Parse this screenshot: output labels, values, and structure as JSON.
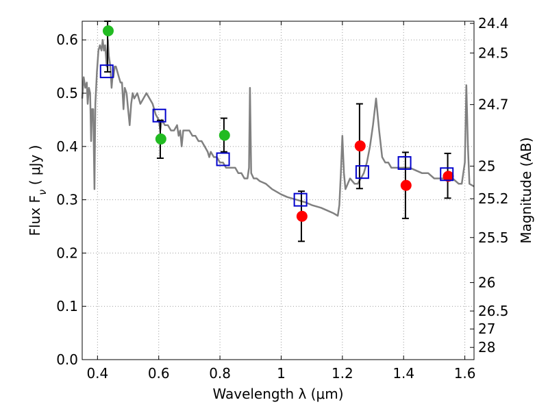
{
  "chart_data": {
    "type": "scatter",
    "xlabel": "Wavelength  λ (μm)",
    "ylabel": "Flux  F_ν  ( μJy )",
    "ylabel_right": "Magnitude (AB)",
    "xlim": [
      0.35,
      1.63
    ],
    "ylim": [
      0.0,
      0.635
    ],
    "grid": true,
    "x_ticks": [
      {
        "value": 0.4,
        "label": "0.4"
      },
      {
        "value": 0.6,
        "label": "0.6"
      },
      {
        "value": 0.8,
        "label": "0.8"
      },
      {
        "value": 1.0,
        "label": "1"
      },
      {
        "value": 1.2,
        "label": "1.2"
      },
      {
        "value": 1.4,
        "label": "1.4"
      },
      {
        "value": 1.6,
        "label": "1.6"
      }
    ],
    "y_ticks": [
      {
        "value": 0.0,
        "label": "0.0"
      },
      {
        "value": 0.1,
        "label": "0.1"
      },
      {
        "value": 0.2,
        "label": "0.2"
      },
      {
        "value": 0.3,
        "label": "0.3"
      },
      {
        "value": 0.4,
        "label": "0.4"
      },
      {
        "value": 0.5,
        "label": "0.5"
      },
      {
        "value": 0.6,
        "label": "0.6"
      }
    ],
    "mag_ticks": [
      {
        "value": 24.4,
        "label": "24.4"
      },
      {
        "value": 24.5,
        "label": "24.5"
      },
      {
        "value": 24.7,
        "label": "24.7"
      },
      {
        "value": 25.0,
        "label": "25"
      },
      {
        "value": 25.2,
        "label": "25.2"
      },
      {
        "value": 25.5,
        "label": "25.5"
      },
      {
        "value": 26.0,
        "label": "26"
      },
      {
        "value": 26.5,
        "label": "26.5"
      },
      {
        "value": 27.0,
        "label": "27"
      },
      {
        "value": 28.0,
        "label": "28"
      }
    ],
    "series": [
      {
        "kind": "line",
        "color": "#808080",
        "points": [
          [
            0.35,
            0.49
          ],
          [
            0.355,
            0.53
          ],
          [
            0.36,
            0.51
          ],
          [
            0.365,
            0.52
          ],
          [
            0.368,
            0.48
          ],
          [
            0.372,
            0.51
          ],
          [
            0.376,
            0.5
          ],
          [
            0.379,
            0.41
          ],
          [
            0.382,
            0.47
          ],
          [
            0.386,
            0.47
          ],
          [
            0.39,
            0.32
          ],
          [
            0.393,
            0.48
          ],
          [
            0.398,
            0.54
          ],
          [
            0.403,
            0.58
          ],
          [
            0.408,
            0.59
          ],
          [
            0.413,
            0.58
          ],
          [
            0.417,
            0.6
          ],
          [
            0.421,
            0.58
          ],
          [
            0.425,
            0.59
          ],
          [
            0.43,
            0.55
          ],
          [
            0.434,
            0.6
          ],
          [
            0.437,
            0.57
          ],
          [
            0.442,
            0.55
          ],
          [
            0.446,
            0.51
          ],
          [
            0.449,
            0.53
          ],
          [
            0.452,
            0.53
          ],
          [
            0.456,
            0.55
          ],
          [
            0.46,
            0.55
          ],
          [
            0.465,
            0.54
          ],
          [
            0.47,
            0.53
          ],
          [
            0.475,
            0.52
          ],
          [
            0.48,
            0.52
          ],
          [
            0.485,
            0.47
          ],
          [
            0.489,
            0.51
          ],
          [
            0.495,
            0.5
          ],
          [
            0.5,
            0.47
          ],
          [
            0.505,
            0.44
          ],
          [
            0.51,
            0.48
          ],
          [
            0.515,
            0.5
          ],
          [
            0.52,
            0.49
          ],
          [
            0.53,
            0.5
          ],
          [
            0.54,
            0.48
          ],
          [
            0.55,
            0.49
          ],
          [
            0.56,
            0.5
          ],
          [
            0.57,
            0.49
          ],
          [
            0.58,
            0.48
          ],
          [
            0.59,
            0.46
          ],
          [
            0.6,
            0.45
          ],
          [
            0.605,
            0.43
          ],
          [
            0.61,
            0.45
          ],
          [
            0.62,
            0.44
          ],
          [
            0.63,
            0.44
          ],
          [
            0.64,
            0.43
          ],
          [
            0.65,
            0.43
          ],
          [
            0.66,
            0.44
          ],
          [
            0.665,
            0.42
          ],
          [
            0.67,
            0.43
          ],
          [
            0.675,
            0.4
          ],
          [
            0.68,
            0.43
          ],
          [
            0.69,
            0.43
          ],
          [
            0.7,
            0.43
          ],
          [
            0.71,
            0.42
          ],
          [
            0.72,
            0.42
          ],
          [
            0.73,
            0.41
          ],
          [
            0.74,
            0.41
          ],
          [
            0.75,
            0.4
          ],
          [
            0.76,
            0.39
          ],
          [
            0.765,
            0.38
          ],
          [
            0.77,
            0.39
          ],
          [
            0.78,
            0.38
          ],
          [
            0.79,
            0.38
          ],
          [
            0.8,
            0.37
          ],
          [
            0.81,
            0.37
          ],
          [
            0.82,
            0.36
          ],
          [
            0.83,
            0.36
          ],
          [
            0.84,
            0.36
          ],
          [
            0.85,
            0.36
          ],
          [
            0.86,
            0.35
          ],
          [
            0.87,
            0.35
          ],
          [
            0.88,
            0.34
          ],
          [
            0.89,
            0.34
          ],
          [
            0.895,
            0.36
          ],
          [
            0.898,
            0.51
          ],
          [
            0.902,
            0.35
          ],
          [
            0.91,
            0.34
          ],
          [
            0.92,
            0.34
          ],
          [
            0.93,
            0.335
          ],
          [
            0.95,
            0.33
          ],
          [
            0.97,
            0.32
          ],
          [
            1.0,
            0.31
          ],
          [
            1.02,
            0.305
          ],
          [
            1.05,
            0.3
          ],
          [
            1.08,
            0.295
          ],
          [
            1.1,
            0.29
          ],
          [
            1.13,
            0.285
          ],
          [
            1.15,
            0.28
          ],
          [
            1.17,
            0.275
          ],
          [
            1.185,
            0.27
          ],
          [
            1.19,
            0.29
          ],
          [
            1.195,
            0.35
          ],
          [
            1.2,
            0.42
          ],
          [
            1.205,
            0.35
          ],
          [
            1.21,
            0.32
          ],
          [
            1.225,
            0.34
          ],
          [
            1.24,
            0.33
          ],
          [
            1.25,
            0.33
          ],
          [
            1.26,
            0.34
          ],
          [
            1.27,
            0.35
          ],
          [
            1.28,
            0.37
          ],
          [
            1.29,
            0.4
          ],
          [
            1.3,
            0.44
          ],
          [
            1.31,
            0.49
          ],
          [
            1.32,
            0.43
          ],
          [
            1.33,
            0.38
          ],
          [
            1.34,
            0.37
          ],
          [
            1.35,
            0.37
          ],
          [
            1.36,
            0.36
          ],
          [
            1.38,
            0.36
          ],
          [
            1.4,
            0.36
          ],
          [
            1.42,
            0.36
          ],
          [
            1.44,
            0.355
          ],
          [
            1.46,
            0.35
          ],
          [
            1.48,
            0.35
          ],
          [
            1.5,
            0.34
          ],
          [
            1.52,
            0.34
          ],
          [
            1.54,
            0.34
          ],
          [
            1.56,
            0.34
          ],
          [
            1.58,
            0.33
          ],
          [
            1.59,
            0.33
          ],
          [
            1.6,
            0.37
          ],
          [
            1.605,
            0.515
          ],
          [
            1.61,
            0.4
          ],
          [
            1.615,
            0.33
          ],
          [
            1.63,
            0.325
          ]
        ]
      },
      {
        "kind": "scatter",
        "marker": "circle",
        "color": "#22bb22",
        "points": [
          {
            "x": 0.435,
            "y": 0.617
          },
          {
            "x": 0.607,
            "y": 0.414
          },
          {
            "x": 0.815,
            "y": 0.421
          }
        ]
      },
      {
        "kind": "scatter",
        "marker": "circle",
        "color": "#ff0000",
        "points": [
          {
            "x": 1.068,
            "y": 0.269
          },
          {
            "x": 1.258,
            "y": 0.401
          },
          {
            "x": 1.408,
            "y": 0.327
          },
          {
            "x": 1.546,
            "y": 0.344
          }
        ]
      },
      {
        "kind": "scatter",
        "marker": "open-square",
        "color": "#0000cc",
        "points": [
          {
            "x": 0.43,
            "y": 0.541
          },
          {
            "x": 0.602,
            "y": 0.458
          },
          {
            "x": 0.81,
            "y": 0.376
          },
          {
            "x": 1.063,
            "y": 0.3
          },
          {
            "x": 1.265,
            "y": 0.352
          },
          {
            "x": 1.403,
            "y": 0.369
          },
          {
            "x": 1.541,
            "y": 0.348
          }
        ]
      }
    ],
    "error_bars": [
      {
        "x": 0.433,
        "lo": 0.54,
        "hi": 0.635
      },
      {
        "x": 0.605,
        "lo": 0.378,
        "hi": 0.449
      },
      {
        "x": 0.813,
        "lo": 0.39,
        "hi": 0.453
      },
      {
        "x": 1.066,
        "lo": 0.222,
        "hi": 0.316
      },
      {
        "x": 1.256,
        "lo": 0.321,
        "hi": 0.48
      },
      {
        "x": 1.406,
        "lo": 0.265,
        "hi": 0.389
      },
      {
        "x": 1.544,
        "lo": 0.303,
        "hi": 0.387
      }
    ]
  }
}
